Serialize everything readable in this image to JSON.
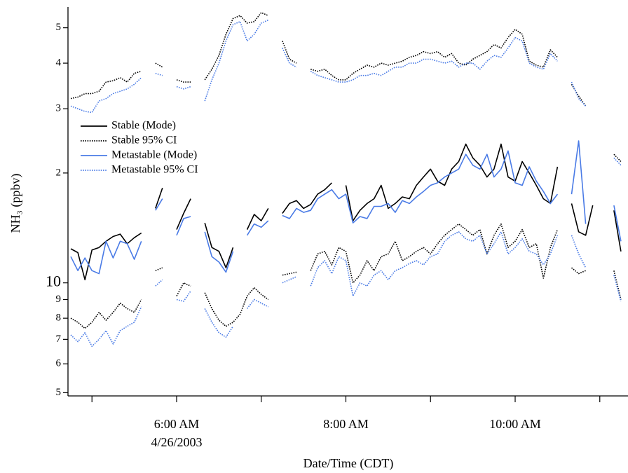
{
  "chart_data": {
    "type": "line",
    "x_label": "Date/Time (CDT)",
    "y_label": "NH₃ (ppbv)",
    "ylog": true,
    "legend": "left",
    "x": [
      "04:45",
      "04:50",
      "04:55",
      "05:00",
      "05:05",
      "05:10",
      "05:15",
      "05:20",
      "05:25",
      "05:30",
      "05:35",
      "05:40",
      "05:45",
      "05:50",
      "05:55",
      "06:00",
      "06:05",
      "06:10",
      "06:15",
      "06:20",
      "06:25",
      "06:30",
      "06:35",
      "06:40",
      "06:45",
      "06:50",
      "06:55",
      "07:00",
      "07:05",
      "07:10",
      "07:15",
      "07:20",
      "07:25",
      "07:30",
      "07:35",
      "07:40",
      "07:45",
      "07:50",
      "07:55",
      "08:00",
      "08:05",
      "08:10",
      "08:15",
      "08:20",
      "08:25",
      "08:30",
      "08:35",
      "08:40",
      "08:45",
      "08:50",
      "08:55",
      "09:00",
      "09:05",
      "09:10",
      "09:15",
      "09:20",
      "09:25",
      "09:30",
      "09:35",
      "09:40",
      "09:45",
      "09:50",
      "09:55",
      "10:00",
      "10:05",
      "10:10",
      "10:15",
      "10:20",
      "10:25",
      "10:30",
      "10:35",
      "10:40",
      "10:45",
      "10:50",
      "10:55",
      "11:00",
      "11:05",
      "11:10",
      "11:15"
    ],
    "xlim": [
      "04:43",
      "11:19"
    ],
    "xticks": [
      {
        "value": "06:00",
        "label": "6:00 AM"
      },
      {
        "value": "08:00",
        "label": "8:00 AM"
      },
      {
        "value": "10:00",
        "label": "10:00 AM"
      }
    ],
    "x_minor_ticks": [
      "05:00",
      "07:00",
      "09:00",
      "11:00"
    ],
    "xtick_sublabel": "4/26/2003",
    "ylim": [
      4.9,
      57
    ],
    "yticks": [
      5,
      6,
      7,
      8,
      9,
      10,
      {
        "value": 20,
        "label": "2"
      },
      {
        "value": 30,
        "label": "3"
      },
      {
        "value": 40,
        "label": "4"
      },
      {
        "value": 50,
        "label": "5"
      }
    ],
    "series": [
      {
        "name": "Stable (Mode)",
        "color": "#000000",
        "dash": "solid",
        "values": [
          12.4,
          12.1,
          10.2,
          12.3,
          12.5,
          13.0,
          13.4,
          13.6,
          12.8,
          13.3,
          13.7,
          null,
          16.0,
          18.2,
          null,
          14.0,
          15.5,
          17.0,
          null,
          14.6,
          12.5,
          12.2,
          11.0,
          12.5,
          null,
          14.0,
          15.4,
          14.8,
          16.0,
          null,
          15.5,
          16.5,
          16.8,
          16.0,
          16.4,
          17.5,
          18.0,
          18.8,
          null,
          18.5,
          14.8,
          15.8,
          16.5,
          17.0,
          18.5,
          16.0,
          16.5,
          17.2,
          17.0,
          18.5,
          19.5,
          20.5,
          19.0,
          18.5,
          20.5,
          21.5,
          24.0,
          22.0,
          21.0,
          19.5,
          20.5,
          24.0,
          19.5,
          19.0,
          21.5,
          20.0,
          18.5,
          17.0,
          16.5,
          20.8,
          null,
          16.5,
          13.8,
          13.5,
          16.3,
          null,
          null,
          15.8,
          12.2
        ]
      },
      {
        "name": "Stable 95% CI",
        "color": "#000000",
        "dash": "dotted",
        "values": [
          32.0,
          32.3,
          33.0,
          33.0,
          33.5,
          35.5,
          35.8,
          36.5,
          35.5,
          37.5,
          38.0,
          null,
          40.0,
          39.0,
          null,
          36.0,
          35.5,
          35.5,
          null,
          36.0,
          38.5,
          42.0,
          48.0,
          53.0,
          54.0,
          51.5,
          52.0,
          55.0,
          54.0,
          null,
          46.0,
          41.0,
          40.0,
          null,
          38.5,
          38.0,
          38.5,
          37.0,
          36.0,
          36.0,
          37.5,
          38.5,
          39.5,
          39.0,
          40.0,
          39.5,
          40.0,
          40.5,
          41.5,
          42.0,
          43.0,
          42.5,
          43.0,
          41.5,
          42.5,
          40.0,
          39.5,
          41.0,
          42.0,
          43.0,
          45.0,
          44.0,
          47.0,
          49.5,
          48.0,
          40.5,
          39.5,
          39.0,
          43.5,
          41.5,
          null,
          35.0,
          32.5,
          30.5,
          null,
          null,
          null,
          22.5,
          21.5
        ]
      },
      {
        "name": "Metastable (Mode)",
        "color": "#4a7be6",
        "dash": "solid",
        "values": [
          11.8,
          10.8,
          11.7,
          10.8,
          10.6,
          13.0,
          11.7,
          13.0,
          12.8,
          11.6,
          13.0,
          null,
          15.8,
          17.0,
          null,
          13.5,
          15.0,
          15.2,
          null,
          13.8,
          11.8,
          11.4,
          10.7,
          12.2,
          null,
          13.5,
          14.5,
          14.2,
          14.8,
          null,
          15.3,
          15.0,
          16.0,
          15.6,
          15.8,
          17.0,
          17.5,
          18.0,
          17.0,
          17.5,
          14.6,
          15.2,
          15.0,
          16.2,
          16.2,
          16.5,
          15.6,
          16.8,
          16.5,
          17.2,
          17.8,
          18.5,
          18.8,
          19.5,
          20.0,
          20.5,
          22.5,
          21.0,
          20.5,
          22.5,
          19.5,
          20.5,
          23.0,
          18.8,
          18.5,
          20.8,
          19.0,
          17.8,
          16.5,
          17.5,
          null,
          17.5,
          24.5,
          14.5,
          null,
          null,
          null,
          16.3,
          13.0
        ]
      },
      {
        "name": "Metastable 95% CI",
        "color": "#4a7be6",
        "dash": "dotted",
        "values": [
          30.5,
          30.0,
          29.5,
          29.3,
          31.5,
          32.0,
          33.0,
          33.5,
          34.0,
          35.0,
          36.5,
          null,
          37.5,
          37.0,
          null,
          34.5,
          34.0,
          34.5,
          null,
          31.5,
          36.0,
          40.0,
          46.0,
          51.0,
          52.0,
          46.0,
          48.0,
          51.5,
          52.5,
          null,
          44.0,
          40.0,
          39.0,
          null,
          38.0,
          37.0,
          36.5,
          36.0,
          35.5,
          35.5,
          36.0,
          37.0,
          37.0,
          37.5,
          37.0,
          38.0,
          39.0,
          39.0,
          40.0,
          40.0,
          41.0,
          41.0,
          40.5,
          40.0,
          40.5,
          39.0,
          40.0,
          40.0,
          38.5,
          40.5,
          42.0,
          41.5,
          44.0,
          47.0,
          46.0,
          40.0,
          39.0,
          38.5,
          42.5,
          40.5,
          null,
          35.5,
          32.0,
          30.5,
          null,
          null,
          null,
          22.0,
          21.0
        ]
      },
      {
        "name": "Stable 95% CI lower",
        "color": "#000000",
        "dash": "dotted",
        "legend_hidden": true,
        "values": [
          8.0,
          7.8,
          7.5,
          7.8,
          8.3,
          7.9,
          8.3,
          8.8,
          8.5,
          8.3,
          9.0,
          null,
          10.8,
          11.0,
          null,
          9.2,
          10.0,
          9.8,
          null,
          9.4,
          8.5,
          7.9,
          7.6,
          7.8,
          8.2,
          9.2,
          9.7,
          9.3,
          9.0,
          null,
          10.5,
          10.6,
          10.7,
          null,
          10.8,
          12.0,
          12.2,
          11.2,
          12.5,
          12.2,
          10.0,
          10.5,
          11.5,
          10.8,
          11.8,
          12.0,
          13.0,
          11.5,
          11.8,
          12.2,
          12.5,
          12.0,
          12.8,
          13.5,
          14.0,
          14.5,
          14.0,
          13.5,
          14.0,
          12.0,
          13.5,
          14.5,
          12.5,
          13.0,
          14.0,
          12.5,
          12.8,
          10.3,
          12.5,
          14.0,
          null,
          11.0,
          10.6,
          10.8,
          null,
          null,
          null,
          10.8,
          9.0
        ]
      },
      {
        "name": "Metastable 95% CI lower",
        "color": "#4a7be6",
        "dash": "dotted",
        "legend_hidden": true,
        "values": [
          7.2,
          6.9,
          7.3,
          6.7,
          7.0,
          7.4,
          6.8,
          7.4,
          7.6,
          7.8,
          8.6,
          null,
          9.8,
          10.2,
          null,
          9.0,
          8.9,
          9.5,
          null,
          8.5,
          7.8,
          7.3,
          7.1,
          7.6,
          null,
          8.5,
          9.0,
          8.8,
          8.6,
          null,
          10.0,
          10.2,
          10.4,
          null,
          9.8,
          11.0,
          11.5,
          10.6,
          11.8,
          11.5,
          9.2,
          10.0,
          9.8,
          10.5,
          10.8,
          10.2,
          10.8,
          11.0,
          11.3,
          11.5,
          11.2,
          11.8,
          12.0,
          13.0,
          13.5,
          13.8,
          13.2,
          13.0,
          13.5,
          12.0,
          12.8,
          13.8,
          12.0,
          12.5,
          13.2,
          12.2,
          12.0,
          11.2,
          12.0,
          13.5,
          null,
          13.5,
          12.0,
          11.0,
          null,
          null,
          null,
          10.5,
          8.9
        ]
      }
    ]
  }
}
